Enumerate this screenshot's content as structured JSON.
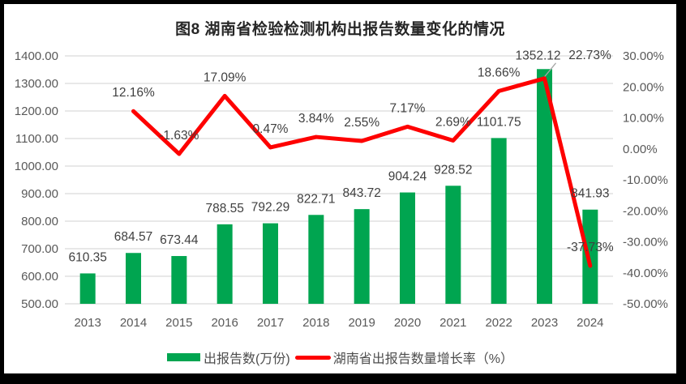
{
  "title": "图8  湖南省检验检测机构出报告数量变化的情况",
  "colors": {
    "bar": "#00A550",
    "line": "#FE0000",
    "grid": "#D9D9D9",
    "axis_text": "#595959",
    "data_label_text": "#3f3f3f",
    "leader": "#A6A6A6",
    "frame": "#000000",
    "background": "#FFFFFF"
  },
  "legend": [
    {
      "swatch": "bar-swatch",
      "label": "出报告数(万份)"
    },
    {
      "swatch": "line-swatch",
      "label": "湖南省出报告数量增长率（%）"
    }
  ],
  "chart_data": {
    "type": "combo-bar-line",
    "categories": [
      "2013",
      "2014",
      "2015",
      "2016",
      "2017",
      "2018",
      "2019",
      "2020",
      "2021",
      "2022",
      "2023",
      "2024"
    ],
    "series": [
      {
        "name": "出报告数(万份)",
        "type": "bar",
        "axis": "left",
        "values": [
          610.35,
          684.57,
          673.44,
          788.55,
          792.29,
          822.71,
          843.72,
          904.24,
          928.52,
          1101.75,
          1352.12,
          841.93
        ],
        "labels": [
          "610.35",
          "684.57",
          "673.44",
          "788.55",
          "792.29",
          "822.71",
          "843.72",
          "904.24",
          "928.52",
          "1101.75",
          "1352.12",
          "841.93"
        ],
        "label_overrides": {
          "10": {
            "dx": -8,
            "dy": 3
          }
        }
      },
      {
        "name": "湖南省出报告数量增长率（%）",
        "type": "line",
        "axis": "right",
        "values": [
          null,
          12.16,
          -1.63,
          17.09,
          0.47,
          3.84,
          2.55,
          7.17,
          2.69,
          18.66,
          22.73,
          -37.73
        ],
        "labels": [
          null,
          "12.16%",
          "-1.63%",
          "17.09%",
          "0.47%",
          "3.84%",
          "2.55%",
          "7.17%",
          "2.69%",
          "18.66%",
          "22.73%",
          "-37.73%"
        ],
        "label_overrides": {
          "10": {
            "dx": 56,
            "dy": -6,
            "leader": true
          }
        }
      }
    ],
    "left_axis": {
      "min": 500,
      "max": 1400,
      "step": 100,
      "ticks": [
        "1400.00",
        "1300.00",
        "1200.00",
        "1100.00",
        "1000.00",
        "900.00",
        "800.00",
        "700.00",
        "600.00",
        "500.00"
      ]
    },
    "right_axis": {
      "min": -50,
      "max": 30,
      "step": 10,
      "ticks": [
        "30.00%",
        "20.00%",
        "10.00%",
        "0.00%",
        "-10.00%",
        "-20.00%",
        "-30.00%",
        "-40.00%",
        "-50.00%"
      ]
    },
    "grid": true,
    "legend_position": "bottom"
  }
}
